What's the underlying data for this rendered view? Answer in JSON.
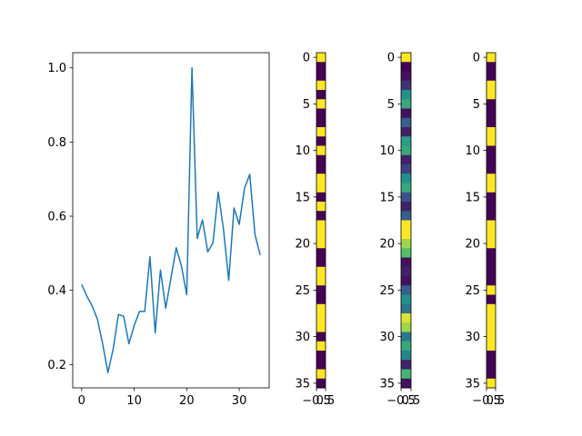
{
  "chart_data": [
    {
      "type": "line",
      "title": "",
      "xlabel": "",
      "ylabel": "",
      "xlim": [
        -1.7,
        35.7
      ],
      "ylim": [
        0.137,
        1.041
      ],
      "xticks": [
        0,
        10,
        20,
        30
      ],
      "yticks": [
        0.2,
        0.4,
        0.6,
        0.8,
        1.0
      ],
      "ytick_labels": [
        "0.2",
        "0.4",
        "0.6",
        "0.8",
        "1.0"
      ],
      "color": "#1f77b4",
      "x": [
        0,
        1,
        2,
        3,
        4,
        5,
        6,
        7,
        8,
        9,
        10,
        11,
        12,
        13,
        14,
        15,
        16,
        17,
        18,
        19,
        20,
        21,
        22,
        23,
        24,
        25,
        26,
        27,
        28,
        29,
        30,
        31,
        32,
        33,
        34
      ],
      "values": [
        0.416,
        0.384,
        0.358,
        0.322,
        0.255,
        0.178,
        0.242,
        0.335,
        0.33,
        0.256,
        0.305,
        0.343,
        0.343,
        0.491,
        0.285,
        0.455,
        0.352,
        0.433,
        0.515,
        0.465,
        0.388,
        1.0,
        0.54,
        0.59,
        0.504,
        0.528,
        0.665,
        0.565,
        0.427,
        0.622,
        0.578,
        0.675,
        0.713,
        0.55,
        0.495
      ],
      "grid": false,
      "legend": "none"
    },
    {
      "type": "heatmap",
      "colormap": "viridis",
      "xlim": [
        -0.5,
        0.5
      ],
      "ylim": [
        35.5,
        -0.5
      ],
      "xticks": [
        -0.5,
        0.5
      ],
      "xtick_labels": [
        "−0.5",
        "0.5"
      ],
      "yticks": [
        0,
        5,
        10,
        15,
        20,
        25,
        30,
        35
      ],
      "values": [
        1,
        0,
        0,
        1,
        0,
        1,
        0,
        0,
        1,
        0,
        1,
        0,
        0,
        1,
        1,
        0,
        1,
        0,
        1,
        1,
        1,
        0,
        0,
        1,
        1,
        0,
        0,
        1,
        1,
        1,
        0,
        1,
        0,
        0,
        1,
        0
      ]
    },
    {
      "type": "heatmap",
      "colormap": "viridis",
      "xlim": [
        -0.5,
        0.5
      ],
      "ylim": [
        35.5,
        -0.5
      ],
      "xticks": [
        -0.5,
        0.5
      ],
      "xtick_labels": [
        "−0.5",
        "0.5"
      ],
      "yticks": [
        0,
        5,
        10,
        15,
        20,
        25,
        30,
        35
      ],
      "values": [
        1,
        0,
        0.05,
        0.15,
        0.5,
        0.6,
        0.05,
        0.3,
        0.1,
        0.55,
        0.6,
        0.1,
        0.2,
        0.5,
        0.6,
        0.25,
        0.1,
        0.3,
        1,
        1,
        0.85,
        0.7,
        0.05,
        0.1,
        0.05,
        0.3,
        0.5,
        0.4,
        0.95,
        0.85,
        0.4,
        0.6,
        0.45,
        0.1,
        0.65,
        0.05
      ]
    },
    {
      "type": "heatmap",
      "colormap": "viridis",
      "xlim": [
        -0.5,
        0.5
      ],
      "ylim": [
        35.5,
        -0.5
      ],
      "xticks": [
        -0.5,
        0.5
      ],
      "xtick_labels": [
        "−0.5",
        "0.5"
      ],
      "yticks": [
        0,
        5,
        10,
        15,
        20,
        25,
        30,
        35
      ],
      "values": [
        1,
        0,
        0,
        1,
        1,
        0,
        0,
        0,
        1,
        1,
        0,
        0,
        0,
        1,
        1,
        0,
        0,
        0,
        1,
        1,
        1,
        0,
        0,
        0,
        0,
        1,
        0,
        1,
        1,
        1,
        1,
        1,
        0,
        0,
        0,
        1
      ]
    }
  ]
}
